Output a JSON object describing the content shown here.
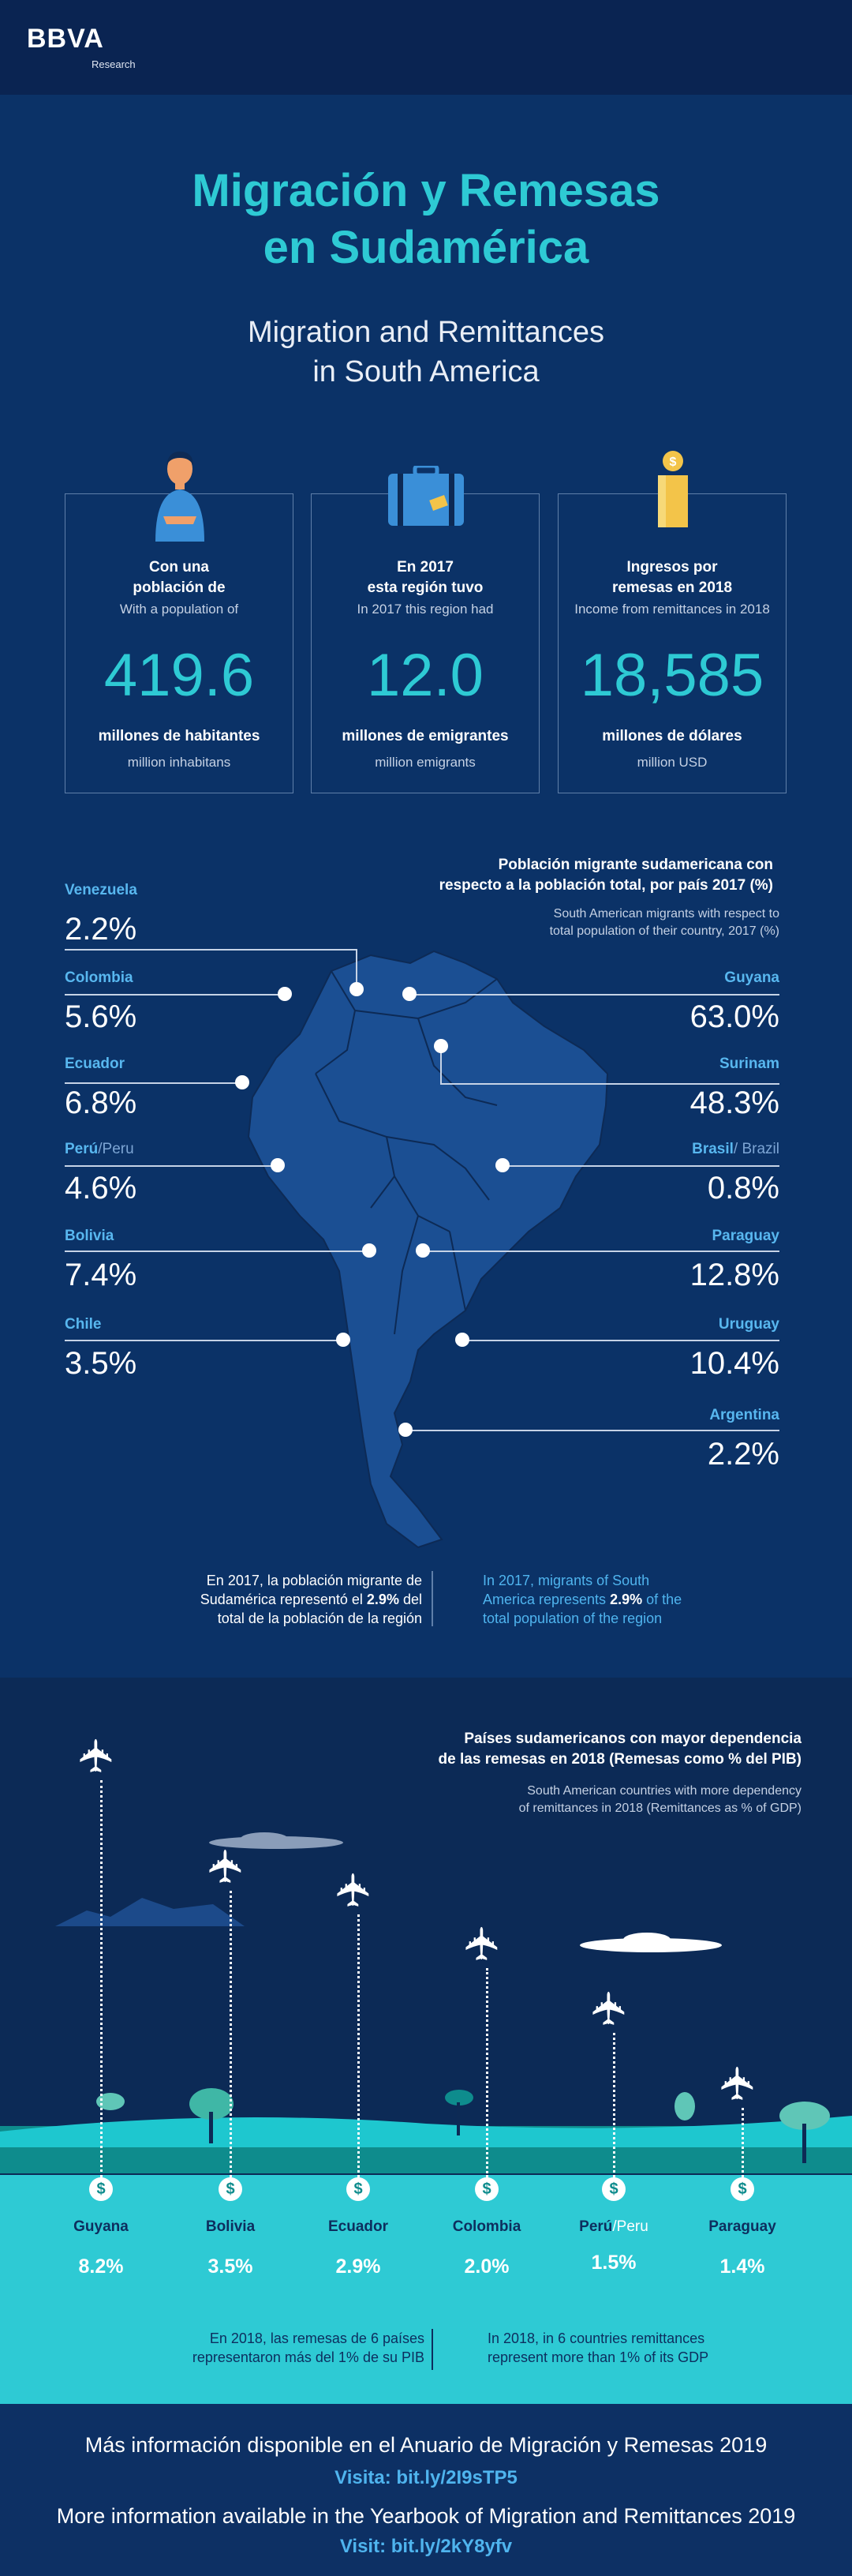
{
  "header": {
    "brand": "BBVA",
    "sub": "Research"
  },
  "hero": {
    "title_line1": "Migración y Remesas",
    "title_line2": "en Sudamérica",
    "subtitle_line1": "Migration and Remittances",
    "subtitle_line2": "in South America"
  },
  "stats": [
    {
      "icon": "person-icon",
      "head1": "Con una",
      "head2": "población de",
      "en": "With a population of",
      "value": "419.6",
      "label": "millones de habitantes",
      "label_en": "million inhabitans"
    },
    {
      "icon": "suitcase-icon",
      "head1": "En 2017",
      "head2": "esta región tuvo",
      "en": "In 2017 this region had",
      "value": "12.0",
      "label": "millones de emigrantes",
      "label_en": "million emigrants"
    },
    {
      "icon": "coins-icon",
      "head1": "Ingresos por",
      "head2": "remesas en 2018",
      "en": "Income from remittances in 2018",
      "value": "18,585",
      "label": "millones de dólares",
      "label_en": "million USD"
    }
  ],
  "map_section": {
    "head1": "Población migrante sudamericana con",
    "head2": "respecto a la población total, por país 2017 (%)",
    "sub1": "South American migrants with respect to",
    "sub2": "total population of their country, 2017 (%)",
    "left": [
      {
        "name": "Venezuela",
        "value": "2.2%"
      },
      {
        "name": "Colombia",
        "value": "5.6%"
      },
      {
        "name": "Ecuador",
        "value": "6.8%"
      },
      {
        "name": "Perú",
        "name_en": "/Peru",
        "value": "4.6%"
      },
      {
        "name": "Bolivia",
        "value": "7.4%"
      },
      {
        "name": "Chile",
        "value": "3.5%"
      }
    ],
    "right": [
      {
        "name": "Guyana",
        "value": "63.0%"
      },
      {
        "name": "Surinam",
        "value": "48.3%"
      },
      {
        "name": "Brasil",
        "name_en": "/ Brazil",
        "value": "0.8%"
      },
      {
        "name": "Paraguay",
        "value": "12.8%"
      },
      {
        "name": "Uruguay",
        "value": "10.4%"
      },
      {
        "name": "Argentina",
        "value": "2.2%"
      }
    ],
    "note_es_1": "En 2017, la población migrante de",
    "note_es_2": "Sudamérica representó el",
    "note_es_bold": "2.9%",
    "note_es_3": "del",
    "note_es_4": "total de la población de la región",
    "note_en_1": "In 2017, migrants of South",
    "note_en_2": "America represents",
    "note_en_bold": "2.9%",
    "note_en_3": "of the",
    "note_en_4": "total population of the region"
  },
  "remit_section": {
    "head1": "Países sudamericanos con mayor dependencia",
    "head2": "de las remesas en 2018 (Remesas como % del PIB)",
    "sub1": "South American countries with more dependency",
    "sub2": "of remittances in 2018 (Remittances as % of GDP)",
    "countries": [
      {
        "name": "Guyana",
        "value": "8.2%",
        "share": 8.2
      },
      {
        "name": "Bolivia",
        "value": "3.5%",
        "share": 3.5
      },
      {
        "name": "Ecuador",
        "value": "2.9%",
        "share": 2.9
      },
      {
        "name": "Colombia",
        "value": "2.0%",
        "share": 2.0
      },
      {
        "name": "Perú",
        "name_en": "/Peru",
        "value": "1.5%",
        "share": 1.5
      },
      {
        "name": "Paraguay",
        "value": "1.4%",
        "share": 1.4
      }
    ],
    "coin_symbol": "$",
    "note_es_1": "En 2018, las remesas de 6 países",
    "note_es_2": "representaron más del 1% de su PIB",
    "note_en_1": "In 2018, in 6 countries remittances",
    "note_en_2": "represent more than 1% of its GDP"
  },
  "footer": {
    "es": "Más información disponible en el Anuario de Migración y Remesas 2019",
    "es_link": "Visita: bit.ly/2I9sTP5",
    "en": "More information available in the Yearbook of Migration and Remittances 2019",
    "en_link": "Visit: bit.ly/2kY8yfv"
  },
  "colors": {
    "accent": "#2ecad4",
    "background": "#0b3267",
    "link": "#4fb4ee"
  }
}
